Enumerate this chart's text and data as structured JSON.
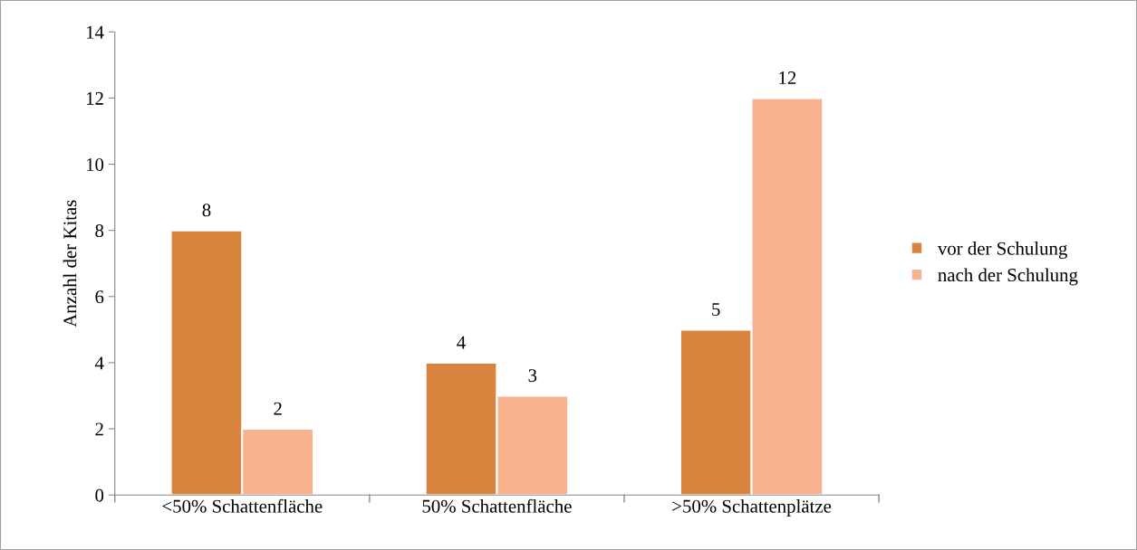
{
  "chart_data": {
    "type": "bar",
    "ylabel": "Anzahl der Kitas",
    "categories": [
      "<50% Schattenfläche",
      "50% Schattenfläche",
      ">50% Schattenplätze"
    ],
    "series": [
      {
        "name": "vor der Schulung",
        "color": "#d9843e",
        "values": [
          8,
          4,
          5
        ]
      },
      {
        "name": "nach der Schulung",
        "color": "#f9b290",
        "values": [
          2,
          3,
          12
        ]
      }
    ],
    "ylim": [
      0,
      14
    ],
    "yticks": [
      0,
      2,
      4,
      6,
      8,
      10,
      12,
      14
    ],
    "data_labels": true,
    "legend": "right",
    "grid": false
  }
}
